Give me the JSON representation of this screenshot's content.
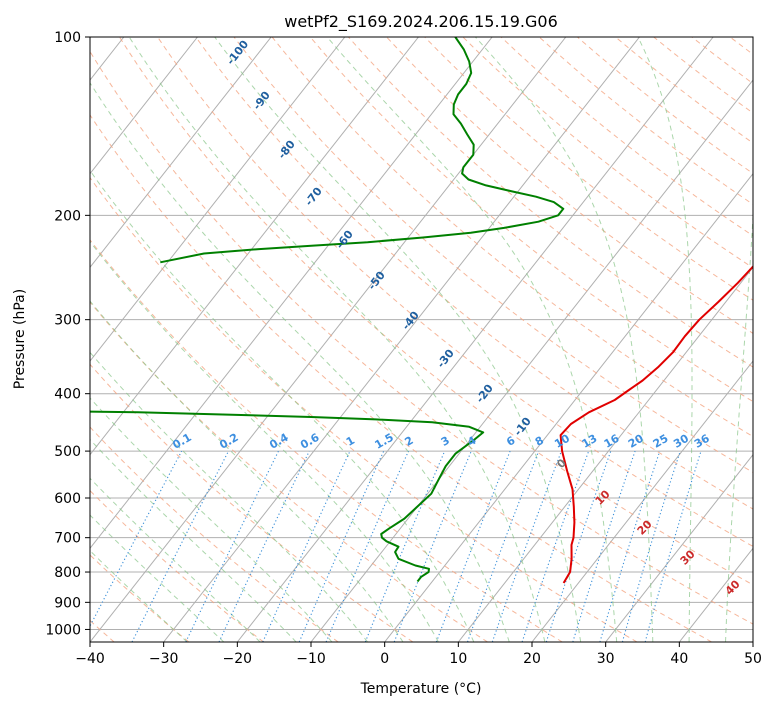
{
  "chart_data": {
    "type": "line",
    "title": "wetPf2_S169.2024.206.15.19.G06",
    "xlabel": "Temperature (°C)",
    "ylabel": "Pressure (hPa)",
    "xlim": [
      -40,
      50
    ],
    "ylim": [
      1050,
      100
    ],
    "y_scale": "log",
    "skew": true,
    "grid": true,
    "x_ticks": [
      -40,
      -30,
      -20,
      -10,
      0,
      10,
      20,
      30,
      40,
      50
    ],
    "y_ticks": [
      100,
      200,
      300,
      400,
      500,
      600,
      700,
      800,
      900,
      1000
    ],
    "series": [
      {
        "color": "#e00000",
        "pressure": [
          835,
          800,
          760,
          720,
          700,
          660,
          620,
          580,
          540,
          500,
          470,
          450,
          430,
          410,
          395,
          380,
          360,
          340,
          320,
          300,
          280,
          260,
          240,
          220,
          200,
          185,
          170,
          155,
          145,
          135,
          125,
          118,
          112,
          106,
          100
        ],
        "temperature": [
          18,
          17.7,
          16.5,
          15,
          14.5,
          13,
          11.2,
          9.2,
          6.5,
          3.7,
          1.8,
          2.0,
          3.2,
          5.4,
          6.2,
          7.1,
          7.8,
          8.2,
          8.1,
          8.3,
          9.0,
          9.6,
          10.0,
          10.2,
          10.2,
          10.5,
          11.0,
          10.6,
          8.5,
          6.5,
          5.6,
          6.5,
          9.0,
          13.0,
          17.0
        ]
      },
      {
        "color": "#008000",
        "pressure": [
          830,
          815,
          800,
          790,
          780,
          760,
          740,
          725,
          710,
          700,
          690,
          675,
          650,
          620,
          590,
          560,
          530,
          505,
          480,
          465,
          455,
          447,
          442,
          438,
          434,
          430,
          428,
          426
        ],
        "temperature": [
          -2,
          -2,
          -1.5,
          -1.8,
          -4,
          -7,
          -8.2,
          -8.3,
          -10.5,
          -11.5,
          -12.0,
          -11.5,
          -10.5,
          -10,
          -9.5,
          -10,
          -10.5,
          -10.5,
          -9.5,
          -9.0,
          -11.5,
          -17,
          -25,
          -34,
          -45,
          -58,
          -70,
          -78
        ]
      },
      {
        "color": "#008000",
        "pressure": [
          240,
          232,
          228,
          225,
          222,
          218,
          214,
          210,
          205,
          200,
          195,
          190,
          186,
          182,
          178,
          174,
          170,
          166,
          162,
          158,
          152,
          146,
          140,
          135,
          130,
          125,
          120,
          115,
          110,
          105,
          100
        ],
        "temperature": [
          -71,
          -66,
          -59,
          -52,
          -45,
          -38,
          -32,
          -28,
          -24,
          -22,
          -22,
          -24,
          -27,
          -31,
          -35,
          -38,
          -39.5,
          -40,
          -40,
          -40,
          -41,
          -43,
          -45,
          -47,
          -48,
          -48.5,
          -48.5,
          -49,
          -50.5,
          -52.5,
          -55
        ]
      }
    ],
    "isotherm_labels": [
      "-100",
      "-90",
      "-80",
      "-70",
      "-60",
      "-50",
      "-40",
      "-30",
      "-20",
      "-10"
    ],
    "mixing_ratio_labels": [
      "0.1",
      "0.2",
      "0.4",
      "0.6",
      "1",
      "1.5",
      "2",
      "3",
      "4",
      "6",
      "8",
      "10",
      "13",
      "16",
      "20",
      "25",
      "30",
      "36"
    ],
    "moist_adiabat_labels": [
      "0",
      "10",
      "20",
      "30",
      "40"
    ]
  }
}
